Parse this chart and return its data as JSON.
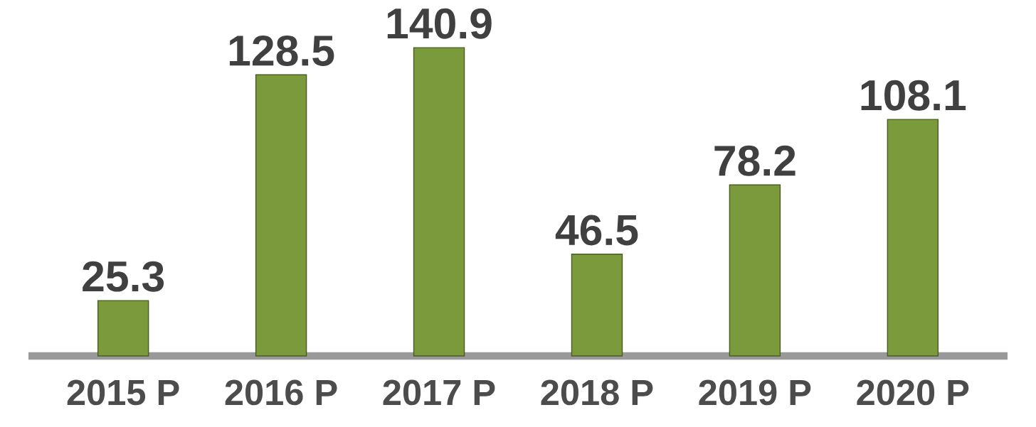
{
  "chart_data": {
    "type": "bar",
    "categories": [
      "2015 P",
      "2016 P",
      "2017 P",
      "2018 P",
      "2019 P",
      "2020 P"
    ],
    "values": [
      25.3,
      128.5,
      140.9,
      46.5,
      78.2,
      108.1
    ],
    "color": "#7a9a3c",
    "data_labels": true
  }
}
